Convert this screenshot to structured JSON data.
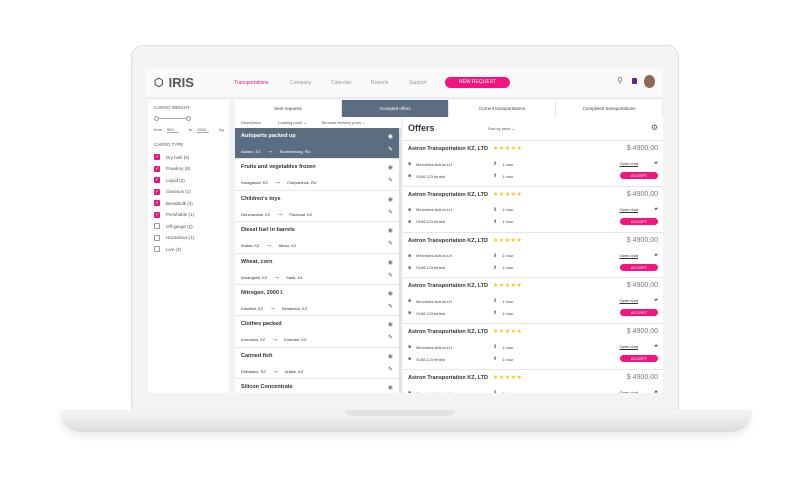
{
  "app": {
    "name": "IRIS"
  },
  "nav": {
    "links": [
      "Transportations",
      "Company",
      "Calendar",
      "Reports",
      "Support"
    ],
    "new_request": "NEW REQUEST"
  },
  "sidebar": {
    "weight_title": "CARGO WEIGHT",
    "from_label": "from",
    "from_value": "500",
    "to_label": "to",
    "to_value": "2000",
    "unit": "kg",
    "type_title": "CARGO TYPE",
    "types": [
      {
        "label": "Dry bulk (6)",
        "checked": true
      },
      {
        "label": "Powdery (8)",
        "checked": true
      },
      {
        "label": "Liquid (2)",
        "checked": true
      },
      {
        "label": "Gaseous (1)",
        "checked": true
      },
      {
        "label": "Breakbulk (4)",
        "checked": true
      },
      {
        "label": "Perishable (1)",
        "checked": true
      },
      {
        "label": "Off-gauge (2)",
        "checked": false
      },
      {
        "label": "Hazardous (1)",
        "checked": false
      },
      {
        "label": "Live (3)",
        "checked": false
      }
    ]
  },
  "tabs": [
    "Sent requests",
    "Accepted offers",
    "Current transportations",
    "Completed transportations"
  ],
  "columns": {
    "description": "Description",
    "loading": "Loading point",
    "terminal": "Terminal delivery point"
  },
  "requests": [
    {
      "title": "Autoparts packed up",
      "from": "Astana, KZ",
      "to": "Ekaterinburg, RU"
    },
    {
      "title": "Fruits and vegetables frozen",
      "from": "Karaganda, KZ",
      "to": "Chelyabinsk, RU"
    },
    {
      "title": "Children's toys",
      "from": "Derzhavinsk, KZ",
      "to": "Pavlodar, KZ"
    },
    {
      "title": "Diesel fuel in barrels",
      "from": "Aralsk, KZ",
      "to": "Atirau, KZ"
    },
    {
      "title": "Wheat, corn",
      "from": "Amangeldi, KZ",
      "to": "Sarik, KZ"
    },
    {
      "title": "Nitrogen, 2000 l.",
      "from": "Kanaftal, KZ",
      "to": "Bzhambul, KZ"
    },
    {
      "title": "Clothes packed",
      "from": "Kornavka, KZ",
      "to": "Kokrobe, KZ"
    },
    {
      "title": "Canned fish",
      "from": "Ekibastuz, KZ",
      "to": "Aralsk, KZ"
    },
    {
      "title": "Silicon Concentrate",
      "from": "",
      "to": ""
    }
  ],
  "offers_panel": {
    "title": "Offers",
    "sort": "Sort by price"
  },
  "offer": {
    "company": "Astron Transportation KZ, LTD",
    "stars": "★★★★★",
    "price": "$ 4900,00",
    "truck": "Mercedes Actros LH",
    "trailer": "SUM-123 tented",
    "load_time": "1 hour",
    "unload_time": "1 hour",
    "chat": "Open chat",
    "accept": "ACCEPT"
  },
  "offer_count": 6,
  "colors": {
    "accent": "#f0157f",
    "selected": "#5b6d80",
    "star": "#f5c518"
  }
}
